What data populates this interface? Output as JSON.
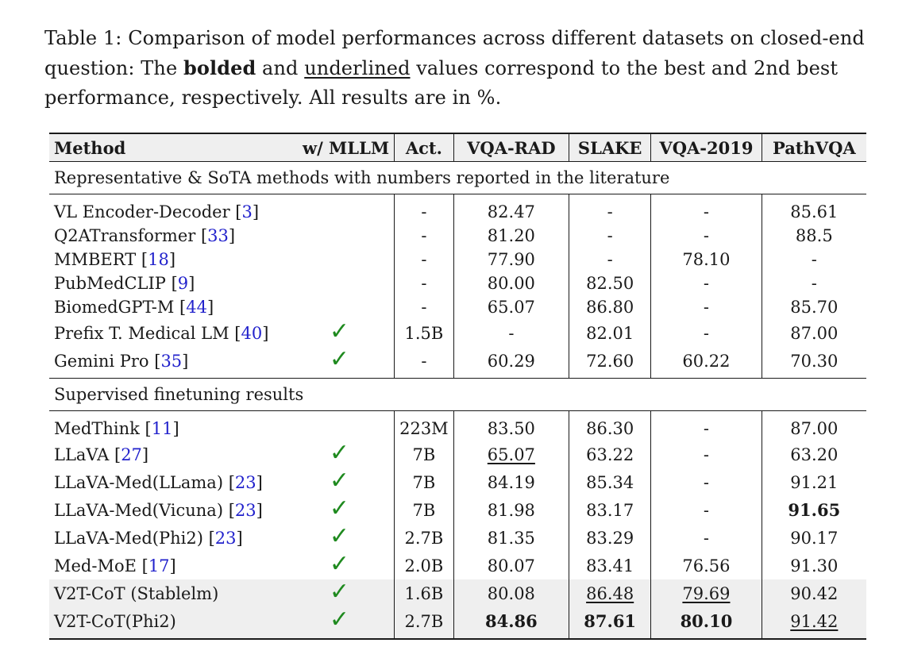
{
  "caption": {
    "part1": "Table 1: Comparison of model performances across different datasets on closed-end question: The ",
    "bold_word": "bolded",
    "part2": " and ",
    "underline_word": "underlined",
    "part3": " values correspond to the best and 2nd best performance, respectively. All results are in %."
  },
  "header": {
    "method": "Method",
    "mllm": "w/ MLLM",
    "act": "Act.",
    "vqarad": "VQA-RAD",
    "slake": "SLAKE",
    "vqa2019": "VQA-2019",
    "pathvqa": "PathVQA"
  },
  "check_glyph": "✓",
  "sections": [
    {
      "title": "Representative & SoTA methods with numbers reported in the literature",
      "rows": [
        {
          "name": "VL Encoder-Decoder [",
          "cite": "3",
          "close": "]",
          "mllm": false,
          "act": "-",
          "vqarad": "82.47",
          "slake": "-",
          "vqa2019": "-",
          "pathvqa": "85.61"
        },
        {
          "name": "Q2ATransformer [",
          "cite": "33",
          "close": "]",
          "mllm": false,
          "act": "-",
          "vqarad": "81.20",
          "slake": "-",
          "vqa2019": "-",
          "pathvqa": "88.5"
        },
        {
          "name": "MMBERT [",
          "cite": "18",
          "close": "]",
          "mllm": false,
          "act": "-",
          "vqarad": "77.90",
          "slake": "-",
          "vqa2019": "78.10",
          "pathvqa": "-"
        },
        {
          "name": "PubMedCLIP [",
          "cite": "9",
          "close": "]",
          "mllm": false,
          "act": "-",
          "vqarad": "80.00",
          "slake": "82.50",
          "vqa2019": "-",
          "pathvqa": "-"
        },
        {
          "name": "BiomedGPT-M [",
          "cite": "44",
          "close": "]",
          "mllm": false,
          "act": "-",
          "vqarad": "65.07",
          "slake": "86.80",
          "vqa2019": "-",
          "pathvqa": "85.70"
        },
        {
          "name": "Prefix T. Medical LM [",
          "cite": "40",
          "close": "]",
          "mllm": true,
          "act": "1.5B",
          "vqarad": "-",
          "slake": "82.01",
          "vqa2019": "-",
          "pathvqa": "87.00"
        },
        {
          "name": "Gemini Pro [",
          "cite": "35",
          "close": "]",
          "mllm": true,
          "act": "-",
          "vqarad": "60.29",
          "slake": "72.60",
          "vqa2019": "60.22",
          "pathvqa": "70.30"
        }
      ]
    },
    {
      "title": "Supervised finetuning results",
      "rows": [
        {
          "name": "MedThink [",
          "cite": "11",
          "close": "]",
          "mllm": false,
          "act": "223M",
          "vqarad": "83.50",
          "slake": "86.30",
          "vqa2019": "-",
          "pathvqa": "87.00"
        },
        {
          "name": "LLaVA [",
          "cite": "27",
          "close": "]",
          "mllm": true,
          "act": "7B",
          "vqarad": "65.07",
          "slake": "63.22",
          "vqa2019": "-",
          "pathvqa": "63.20"
        },
        {
          "name": "LLaVA-Med(LLama) [",
          "cite": "23",
          "close": "]",
          "mllm": true,
          "act": "7B",
          "vqarad": "84.19",
          "slake": "85.34",
          "vqa2019": "-",
          "pathvqa": "91.21"
        },
        {
          "name": "LLaVA-Med(Vicuna) [",
          "cite": "23",
          "close": "]",
          "mllm": true,
          "act": "7B",
          "vqarad": "81.98",
          "slake": "83.17",
          "vqa2019": "-",
          "pathvqa": "91.65"
        },
        {
          "name": "LLaVA-Med(Phi2) [",
          "cite": "23",
          "close": "]",
          "mllm": true,
          "act": "2.7B",
          "vqarad": "81.35",
          "slake": "83.29",
          "vqa2019": "-",
          "pathvqa": "90.17"
        },
        {
          "name": "Med-MoE [",
          "cite": "17",
          "close": "]",
          "mllm": true,
          "act": "2.0B",
          "vqarad": "80.07",
          "slake": "83.41",
          "vqa2019": "76.56",
          "pathvqa": "91.30"
        },
        {
          "name": "V2T-CoT (Stablelm)",
          "cite": "",
          "close": "",
          "mllm": true,
          "act": "1.6B",
          "vqarad": "80.08",
          "slake": "86.48",
          "vqa2019": "79.69",
          "pathvqa": "90.42"
        },
        {
          "name": "V2T-CoT(Phi2)",
          "cite": "",
          "close": "",
          "mllm": true,
          "act": "2.7B",
          "vqarad": "84.86",
          "slake": "87.61",
          "vqa2019": "80.10",
          "pathvqa": "91.42"
        }
      ]
    }
  ]
}
